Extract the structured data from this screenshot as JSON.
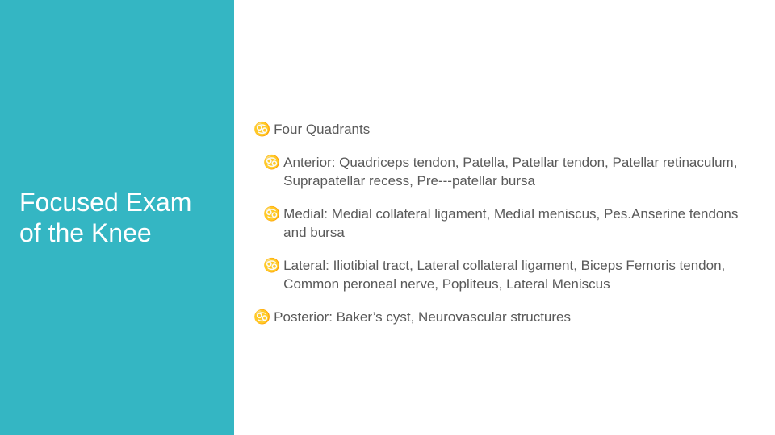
{
  "layout": {
    "slide_width": 960,
    "slide_height": 540,
    "left_panel_width": 290,
    "left_panel_bg": "#34b6c3",
    "right_panel_bg": "#ffffff",
    "bullet_icon_color": "#34b6c3",
    "body_text_color": "#595959",
    "title_color": "#ffffff",
    "title_fontsize": 32,
    "body_fontsize": 17,
    "bullet_glyph": "♋"
  },
  "title": "Focused Exam of the Knee",
  "bullets": [
    {
      "indent": 0,
      "text": "Four Quadrants"
    },
    {
      "indent": 1,
      "text": "Anterior: Quadriceps tendon, Patella, Patellar tendon, Patellar retinaculum, Suprapatellar recess, Pre-‐-patellar bursa"
    },
    {
      "indent": 1,
      "text": "Medial: Medial collateral ligament, Medial meniscus, Pes.Anserine tendons and bursa"
    },
    {
      "indent": 1,
      "text": "Lateral: Iliotibial tract, Lateral collateral ligament, Biceps Femoris tendon, Common peroneal nerve, Popliteus, Lateral Meniscus"
    },
    {
      "indent": 0,
      "text": "Posterior: Baker’s cyst, Neurovascular structures"
    }
  ]
}
